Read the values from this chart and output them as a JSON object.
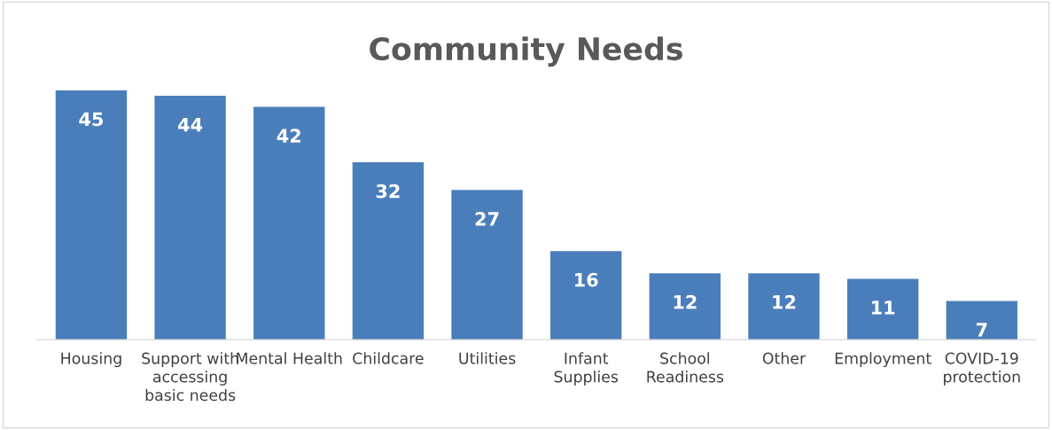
{
  "chart_data": {
    "type": "bar",
    "title": "Community Needs",
    "categories": [
      "Housing",
      "Support with accessing basic needs",
      "Mental Health",
      "Childcare",
      "Utilities",
      "Infant Supplies",
      "School Readiness",
      "Other",
      "Employment",
      "COVID-19 protection"
    ],
    "values": [
      45,
      44,
      42,
      32,
      27,
      16,
      12,
      12,
      11,
      7
    ],
    "color": "#4a7ebb",
    "data_labels": true,
    "grid": false,
    "legend": false
  }
}
